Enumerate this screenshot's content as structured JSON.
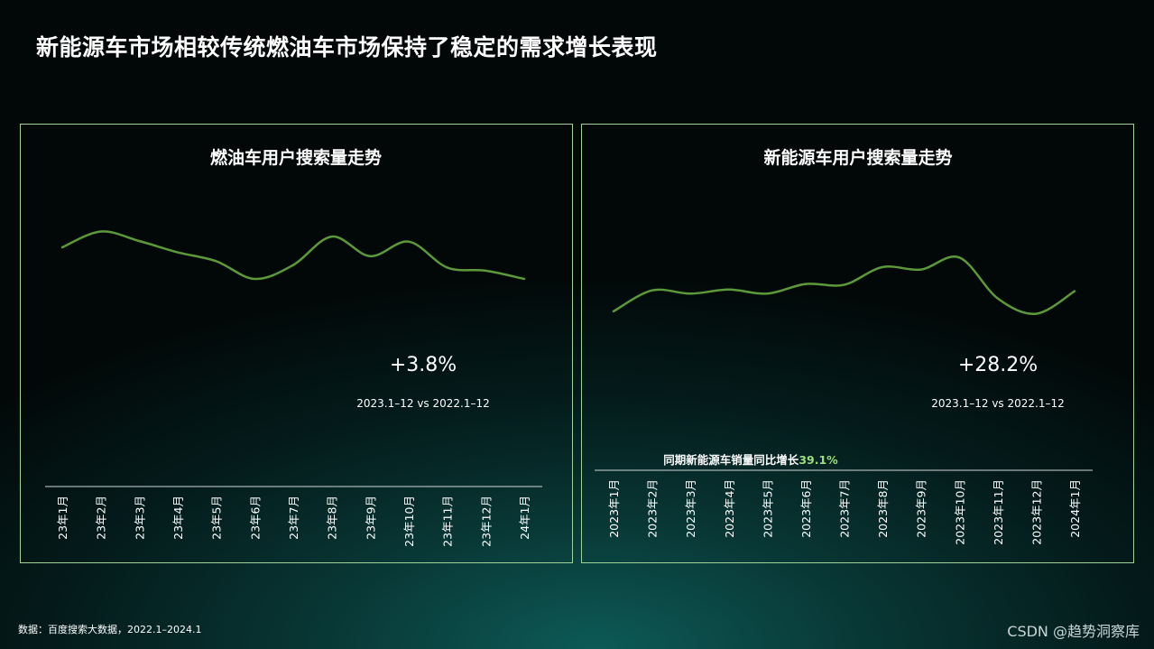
{
  "page": {
    "title": "新能源车市场相较传统燃油车市场保持了稳定的需求增长表现",
    "footnote": "数据：百度搜索大数据，2022.1–2024.1",
    "watermark": "CSDN @趋势洞察库"
  },
  "colors": {
    "line": "#5a9a3a",
    "border": "#9fd39a",
    "highlight": "#9be07a",
    "axis": "#cfd8d8"
  },
  "chart_data": [
    {
      "type": "line",
      "title": "燃油车用户搜索量走势",
      "categories": [
        "23年1月",
        "23年2月",
        "23年3月",
        "23年4月",
        "23年5月",
        "23年6月",
        "23年7月",
        "23年8月",
        "23年9月",
        "23年10月",
        "23年11月",
        "23年12月",
        "24年1月"
      ],
      "values": [
        70,
        95,
        80,
        62,
        48,
        20,
        42,
        87,
        56,
        79,
        38,
        33,
        20
      ],
      "ylim": [
        0,
        100
      ],
      "grid": false,
      "annotations": {
        "growth": "+3.8%",
        "period": "2023.1–12 vs 2022.1–12"
      }
    },
    {
      "type": "line",
      "title": "新能源车用户搜索量走势",
      "categories": [
        "2023年1月",
        "2023年2月",
        "2023年3月",
        "2023年4月",
        "2023年5月",
        "2023年6月",
        "2023年7月",
        "2023年8月",
        "2023年9月",
        "2023年10月",
        "2023年11月",
        "2023年12月",
        "2024年1月"
      ],
      "values": [
        8,
        34,
        30,
        35,
        30,
        42,
        41,
        63,
        60,
        75,
        24,
        5,
        33
      ],
      "ylim": [
        0,
        100
      ],
      "grid": false,
      "annotations": {
        "growth": "+28.2%",
        "period": "2023.1–12 vs 2022.1–12",
        "note_prefix": "同期新能源车销量同比增长",
        "note_value": "39.1%"
      }
    }
  ]
}
